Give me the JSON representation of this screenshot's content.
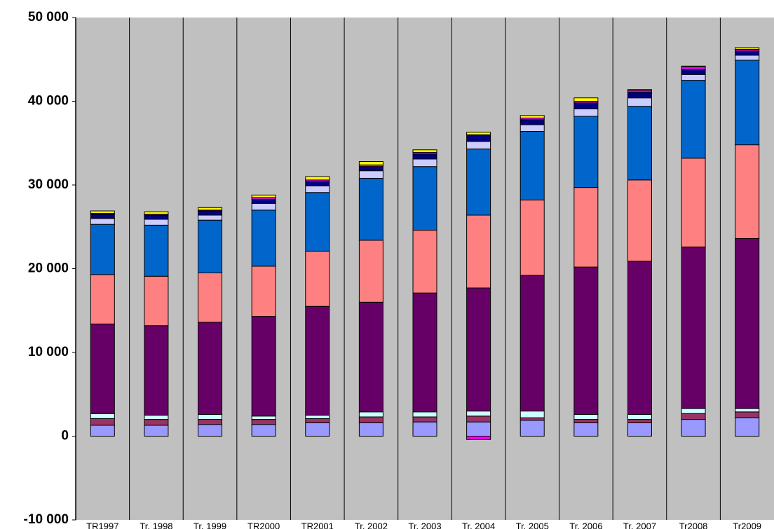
{
  "chart_data": {
    "type": "stacked_bar",
    "categories": [
      "TR1997",
      "Tr. 1998",
      "Tr. 1999",
      "TR2000",
      "TR2001",
      "Tr. 2002",
      "Tr. 2003",
      "Tr. 2004",
      "Tr. 2005",
      "Tr. 2006",
      "Tr. 2007",
      "Tr2008",
      "Tr2009"
    ],
    "series": [
      {
        "color": "#9999ff",
        "values": [
          1300,
          1300,
          1400,
          1400,
          1600,
          1600,
          1700,
          1700,
          1900,
          1600,
          1600,
          2000,
          2200
        ]
      },
      {
        "color": "#993366",
        "values": [
          800,
          700,
          600,
          600,
          500,
          700,
          600,
          700,
          300,
          400,
          400,
          700,
          700
        ]
      },
      {
        "color": "#ccffff",
        "values": [
          600,
          500,
          600,
          400,
          400,
          600,
          600,
          600,
          800,
          600,
          600,
          600,
          400
        ]
      },
      {
        "color": "#660066",
        "values": [
          10700,
          10700,
          11000,
          11900,
          13000,
          13100,
          14200,
          14700,
          16200,
          17600,
          18300,
          19300,
          20300
        ]
      },
      {
        "color": "#ff8080",
        "values": [
          5900,
          5900,
          5900,
          6000,
          6600,
          7400,
          7500,
          8700,
          9000,
          9500,
          9700,
          10600,
          11200
        ]
      },
      {
        "color": "#0066cc",
        "values": [
          6000,
          6100,
          6300,
          6700,
          7000,
          7400,
          7600,
          7900,
          8200,
          8500,
          8800,
          9300,
          10100
        ]
      },
      {
        "color": "#ccccff",
        "values": [
          700,
          700,
          600,
          800,
          800,
          900,
          900,
          900,
          800,
          900,
          1000,
          700,
          600
        ]
      },
      {
        "color": "#000080",
        "values": [
          500,
          500,
          500,
          500,
          500,
          500,
          600,
          800,
          600,
          700,
          700,
          600,
          500
        ]
      },
      {
        "color": "#ff00ff",
        "values": [
          100,
          100,
          100,
          200,
          200,
          200,
          200,
          -400,
          200,
          200,
          200,
          300,
          200
        ]
      },
      {
        "color": "#ffff00",
        "values": [
          300,
          300,
          300,
          300,
          400,
          400,
          300,
          300,
          300,
          400,
          100,
          100,
          200
        ]
      }
    ],
    "ylim": [
      -10000,
      50000
    ],
    "yticks": [
      {
        "value": -10000,
        "label": "-10 000"
      },
      0,
      {
        "value": 10000,
        "label": "10 000"
      },
      {
        "value": 20000,
        "label": "20 000"
      },
      {
        "value": 30000,
        "label": "30 000"
      },
      {
        "value": 40000,
        "label": "40 000"
      },
      {
        "value": 50000,
        "label": "50 000"
      }
    ],
    "grid": true,
    "plot_background": "#c0c0c0"
  }
}
